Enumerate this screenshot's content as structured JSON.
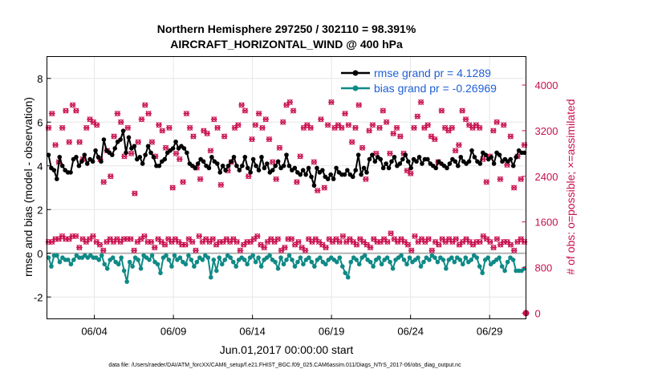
{
  "chart_data": {
    "type": "line",
    "title": "Northern Hemisphere 297250 / 302110 = 98.391%",
    "subtitle": "AIRCRAFT_HORIZONTAL_WIND @ 400 hPa",
    "xlabel": "Jun.01,2017 00:00:00 start",
    "ylabel": "rmse and bias (model - observation)",
    "ylabel_right": "# of obs: o=possible; ×=assimilated",
    "footer": "data file: /Users/raeder/DAI/ATM_forcXX/CAM6_setup/f.e21.FHIST_BGC.f09_025.CAM6assim.011/Diags_NTrS_2017-06/obs_diag_output.nc",
    "xlim": [
      0.5,
      30.8
    ],
    "ylim": [
      -3,
      9
    ],
    "ylim_right": [
      -100,
      4500
    ],
    "x_ticks": [
      3.5,
      8.5,
      13.5,
      18.5,
      23.5,
      28.5
    ],
    "x_tick_labels": [
      "06/04",
      "06/09",
      "06/14",
      "06/19",
      "06/24",
      "06/29"
    ],
    "y_ticks": [
      -2,
      0,
      2,
      4,
      6,
      8
    ],
    "y_tick_labels": [
      "-2",
      "0",
      "2",
      "4",
      "6",
      "8"
    ],
    "y_ticks_right": [
      0,
      800,
      1600,
      2400,
      3200,
      4000
    ],
    "y_tick_labels_right": [
      "0",
      "800",
      "1600",
      "2400",
      "3200",
      "4000"
    ],
    "zero_line": 0,
    "series": [
      {
        "name": "rmse grand pr = 4.1289",
        "color": "#000000",
        "values": [
          4.5,
          3.9,
          3.8,
          3.4,
          4.4,
          4.0,
          3.8,
          3.7,
          3.7,
          4.3,
          4.4,
          4.0,
          4.2,
          4.5,
          4.1,
          4.3,
          4.2,
          4.7,
          4.4,
          4.2,
          5.2,
          4.7,
          4.6,
          4.5,
          4.8,
          5.1,
          5.2,
          5.6,
          4.6,
          5.3,
          4.8,
          4.9,
          4.3,
          4.4,
          4.1,
          4.5,
          4.9,
          4.6,
          4.4,
          4.0,
          4.0,
          4.2,
          4.3,
          4.6,
          4.7,
          4.8,
          5.1,
          4.8,
          4.9,
          4.8,
          4.6,
          4.1,
          4.0,
          3.9,
          4.1,
          4.3,
          4.2,
          4.0,
          3.9,
          4.4,
          4.2,
          4.1,
          3.7,
          4.0,
          3.8,
          4.0,
          4.2,
          4.4,
          4.0,
          3.8,
          4.0,
          4.4,
          3.9,
          3.7,
          4.3,
          4.0,
          3.8,
          4.4,
          3.9,
          4.1,
          3.7,
          3.8,
          4.0,
          4.2,
          3.9,
          4.0,
          4.5,
          4.0,
          3.8,
          3.9,
          3.7,
          3.6,
          3.8,
          3.6,
          3.9,
          3.5,
          3.1,
          3.9,
          3.7,
          3.8,
          3.5,
          3.4,
          3.6,
          3.4,
          3.9,
          3.7,
          3.6,
          3.6,
          3.8,
          3.6,
          3.5,
          3.8,
          4.5,
          3.6,
          3.9,
          3.7,
          4.3,
          4.5,
          4.2,
          4.4,
          4.3,
          3.9,
          4.1,
          3.9,
          4.2,
          4.4,
          4.0,
          4.1,
          4.3,
          4.5,
          4.2,
          3.9,
          4.3,
          4.2,
          4.4,
          4.1,
          4.3,
          4.3,
          4.1,
          4.0,
          3.9,
          4.2,
          4.1,
          4.0,
          3.9,
          4.1,
          4.3,
          4.2,
          4.0,
          4.4,
          4.2,
          4.1,
          4.2,
          4.7,
          4.4,
          4.2,
          4.1,
          4.6,
          4.5,
          4.3,
          4.4,
          4.1,
          4.6,
          4.5,
          4.2,
          4.3,
          4.2,
          4.3,
          4.0,
          4.4,
          4.7,
          4.6,
          4.6
        ]
      },
      {
        "name": "bias grand pr = -0.26969",
        "color": "#0f8a86",
        "values": [
          -0.2,
          -0.6,
          -0.1,
          -0.1,
          -0.4,
          -0.2,
          -0.3,
          -0.3,
          -0.5,
          -0.3,
          -0.1,
          -0.2,
          -0.2,
          -0.1,
          -0.2,
          -0.1,
          -0.2,
          -0.2,
          -0.3,
          -0.1,
          -0.5,
          -0.7,
          -0.3,
          -0.2,
          -0.4,
          -0.5,
          -0.2,
          -0.8,
          -1.3,
          -0.4,
          -0.6,
          -0.2,
          -0.3,
          -0.7,
          -0.1,
          -0.2,
          -0.3,
          -0.1,
          -0.4,
          -0.5,
          -0.9,
          -0.2,
          -0.1,
          -0.3,
          -0.6,
          -0.1,
          -0.3,
          -0.2,
          -0.4,
          -0.5,
          -0.1,
          -0.3,
          -0.6,
          -0.4,
          -0.2,
          -0.3,
          -0.1,
          -0.2,
          -1.1,
          -0.3,
          -0.8,
          -0.2,
          -0.5,
          -0.3,
          -0.1,
          -0.2,
          -0.4,
          -0.6,
          -0.3,
          -0.2,
          -0.3,
          -0.5,
          -0.2,
          -0.1,
          -0.4,
          -0.2,
          -0.6,
          -0.3,
          -0.2,
          -0.1,
          -0.3,
          -0.4,
          -0.7,
          -0.2,
          -0.5,
          -0.3,
          -0.1,
          -0.3,
          -0.6,
          -0.4,
          -0.2,
          -0.5,
          -0.3,
          -0.2,
          -0.4,
          -0.6,
          -0.3,
          -0.2,
          -0.4,
          -0.5,
          -0.3,
          -0.2,
          -0.3,
          -0.4,
          -0.2,
          -0.6,
          -0.9,
          -1.1,
          -0.4,
          -0.2,
          -0.3,
          -0.5,
          -0.2,
          -0.1,
          -0.3,
          -0.4,
          -0.6,
          -0.3,
          -0.2,
          -0.5,
          -0.3,
          -0.2,
          -0.4,
          -0.7,
          -0.3,
          -0.2,
          -0.1,
          -0.3,
          -0.5,
          -0.2,
          -0.4,
          -0.3,
          -0.2,
          -0.6,
          -0.4,
          -0.2,
          -0.3,
          -0.1,
          -0.2,
          -0.4,
          -0.2,
          -0.3,
          -0.7,
          -0.3,
          -0.2,
          -0.4,
          -0.2,
          -0.3,
          -0.5,
          -0.2,
          -0.4,
          -0.3,
          -0.1,
          -0.2,
          -0.6,
          -0.9,
          -0.3,
          -0.2,
          -0.5,
          -0.4,
          -0.3,
          -0.2,
          -0.6,
          -0.8,
          -0.4,
          -0.2,
          -0.3,
          -0.8,
          -0.8,
          -0.8,
          -0.7
        ]
      }
    ],
    "obs_counts": {
      "name": "# of obs",
      "color": "#c8104e",
      "possible_high": [
        3250,
        3500,
        2950,
        2650,
        3250,
        3550,
        3000,
        3650,
        3550,
        3000,
        2700,
        3250,
        3400,
        3350,
        3300,
        2700,
        2300,
        2850,
        2400,
        3100,
        3500,
        3350,
        2750,
        3250,
        2800,
        2100,
        3000,
        3400,
        3650,
        3500,
        3000,
        2750,
        3300,
        3200,
        2900,
        3250,
        2200,
        2800,
        2700,
        2300,
        3500,
        3250,
        3100,
        2550,
        2350,
        3200,
        3150,
        2850,
        3400,
        3250,
        2250,
        3100,
        2500,
        2650,
        3250,
        3300,
        3650,
        3550,
        2400,
        3050,
        3300,
        3500,
        3250,
        3400,
        3050,
        2650,
        2350,
        2900,
        3350,
        3650,
        3700,
        3550,
        2300,
        2750,
        3250,
        3300,
        3250,
        2650,
        2150,
        3400,
        2200,
        3300,
        3700,
        3250,
        3300,
        3250,
        3500,
        3300,
        3000,
        3250,
        3650,
        2900,
        2350,
        3200,
        3300,
        2800,
        3250,
        3550,
        3350,
        2800,
        3150,
        3250,
        3100,
        2800,
        2500,
        2450,
        3250,
        3450,
        3700,
        3250,
        3300,
        3100,
        3050,
        2650,
        3550,
        3250,
        3200,
        3250,
        2850,
        2950,
        3550,
        3400,
        3300,
        3250,
        3300,
        3250,
        2700,
        2300,
        2750,
        3200,
        3350,
        2350,
        3300,
        2600,
        3100,
        2200,
        2750,
        2350,
        2950
      ],
      "low": [
        1250,
        1250,
        1300,
        1300,
        1350,
        1300,
        1300,
        1350,
        1350,
        1150,
        1300,
        1250,
        1300,
        1350,
        1250,
        1200,
        1100,
        1250,
        1300,
        1250,
        1300,
        1250,
        1300,
        1300,
        1300,
        1100,
        1250,
        1300,
        1350,
        1250,
        1250,
        1150,
        1300,
        1250,
        1200,
        1300,
        1250,
        1300,
        1250,
        1200,
        1200,
        1300,
        1250,
        1100,
        1350,
        1250,
        1300,
        1250,
        1300,
        1200,
        1250,
        1250,
        1300,
        1250,
        1300,
        1250,
        1100,
        1200,
        1250,
        1250,
        1300,
        1350,
        1200,
        1150,
        1250,
        1300,
        1250,
        1300,
        1100,
        1150,
        1300,
        1300,
        1200,
        1250,
        1150,
        1100,
        1300,
        1250,
        1300,
        1250,
        1200,
        1150,
        1300,
        1250,
        1300,
        1250,
        1350,
        1250,
        1300,
        1250,
        1200,
        1300,
        1250,
        1200,
        1150,
        1300,
        1250,
        1250,
        1300,
        1250,
        1400,
        1300,
        1250,
        1300,
        1250,
        1200,
        1100,
        1350,
        1250,
        1300,
        1250,
        1300,
        1100,
        1250,
        1200,
        1300,
        1250,
        1300,
        1250,
        1300,
        1200,
        1250,
        1300,
        1250,
        1200,
        1250,
        1250,
        1350,
        1300,
        1250,
        1150,
        1300,
        1200,
        1250,
        1250,
        1200,
        1100,
        1250,
        1300,
        1250
      ],
      "last_value": 0
    },
    "legend": [
      "rmse grand pr = 4.1289",
      "bias grand pr = -0.26969"
    ],
    "legend_position": "top-right"
  }
}
